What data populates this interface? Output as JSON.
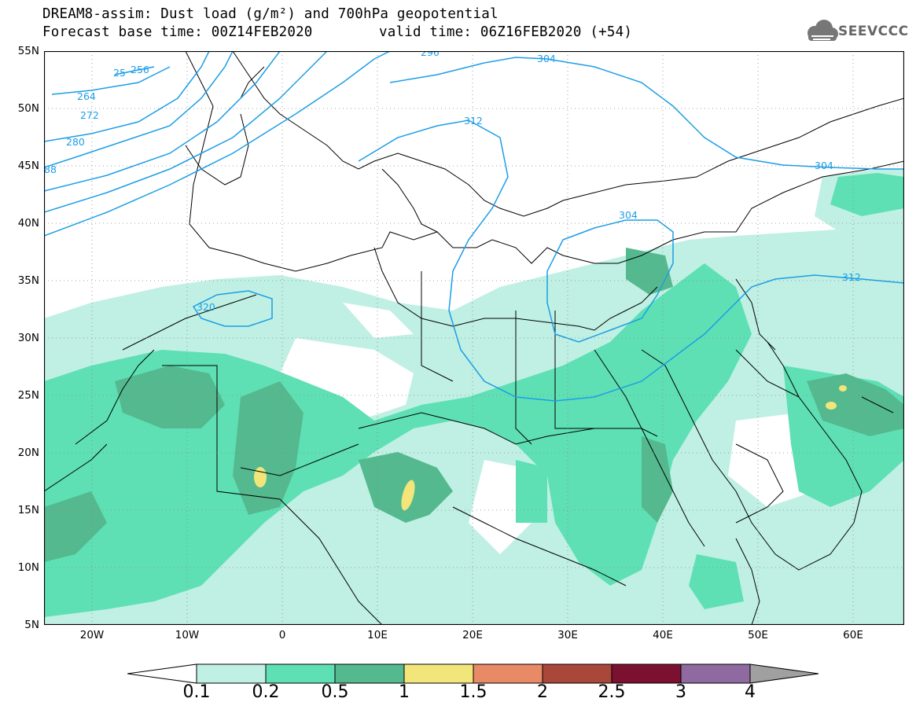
{
  "title": {
    "line1": "DREAM8-assim: Dust load (g/m²) and 700hPa geopotential",
    "line2": "Forecast base time: 00Z14FEB2020",
    "line2b": "valid time: 06Z16FEB2020 (+54)"
  },
  "logo": {
    "text": "SEEVCCC",
    "icon": "cloud-icon"
  },
  "map": {
    "lat_labels": [
      "55N",
      "50N",
      "45N",
      "40N",
      "35N",
      "30N",
      "25N",
      "20N",
      "15N",
      "10N",
      "5N"
    ],
    "lon_labels": [
      "20W",
      "10W",
      "0",
      "10E",
      "20E",
      "30E",
      "40E",
      "50E",
      "60E"
    ],
    "contour_labels": [
      "25",
      "256",
      "264",
      "272",
      "280",
      "88",
      "296",
      "304",
      "312",
      "304",
      "304",
      "320",
      "312"
    ]
  },
  "colorbar": {
    "labels": [
      "0.1",
      "0.2",
      "0.5",
      "1",
      "1.5",
      "2",
      "2.5",
      "3",
      "4"
    ],
    "colors": [
      "#ffffff",
      "#bff0e3",
      "#5ee0b4",
      "#55b98f",
      "#f2e67a",
      "#e98a66",
      "#a8473a",
      "#7b1030",
      "#8e6aa0",
      "#a0a0a0"
    ]
  },
  "colors": {
    "very_light": "#bff0e3",
    "light": "#5ee0b4",
    "medium": "#55b98f",
    "yellow": "#f2e67a",
    "contour": "#1c9ee6"
  }
}
